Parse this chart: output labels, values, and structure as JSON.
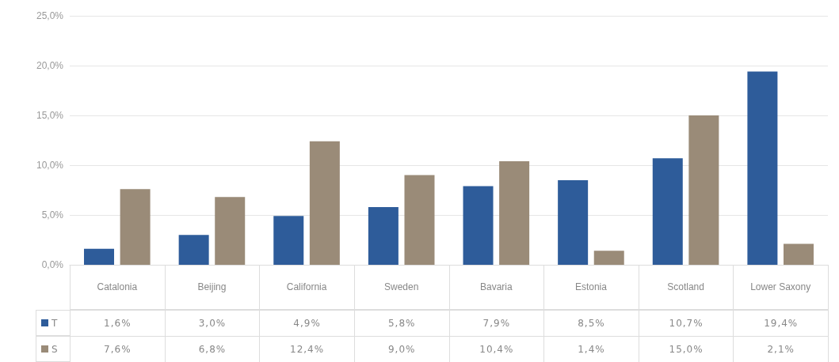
{
  "chart_data": {
    "type": "bar",
    "categories": [
      "Catalonia",
      "Beijing",
      "California",
      "Sweden",
      "Bavaria",
      "Estonia",
      "Scotland",
      "Lower Saxony"
    ],
    "series": [
      {
        "name": "T",
        "color": "#2e5c9a",
        "values": [
          1.6,
          3.0,
          4.9,
          5.8,
          7.9,
          8.5,
          10.7,
          19.4
        ],
        "value_labels": [
          "1,6%",
          "3,0%",
          "4,9%",
          "5,8%",
          "7,9%",
          "8,5%",
          "10,7%",
          "19,4%"
        ]
      },
      {
        "name": "S",
        "color": "#9a8b78",
        "values": [
          7.6,
          6.8,
          12.4,
          9.0,
          10.4,
          1.4,
          15.0,
          2.1
        ],
        "value_labels": [
          "7,6%",
          "6,8%",
          "12,4%",
          "9,0%",
          "10,4%",
          "1,4%",
          "15,0%",
          "2,1%"
        ]
      }
    ],
    "ylim": [
      0,
      25
    ],
    "yticks": [
      {
        "value": 0,
        "label": "0,0%"
      },
      {
        "value": 5,
        "label": "5,0%"
      },
      {
        "value": 10,
        "label": "10,0%"
      },
      {
        "value": 15,
        "label": "15,0%"
      },
      {
        "value": 20,
        "label": "20,0%"
      },
      {
        "value": 25,
        "label": "25,0%"
      }
    ],
    "grid": "y",
    "legend": "bottom"
  }
}
